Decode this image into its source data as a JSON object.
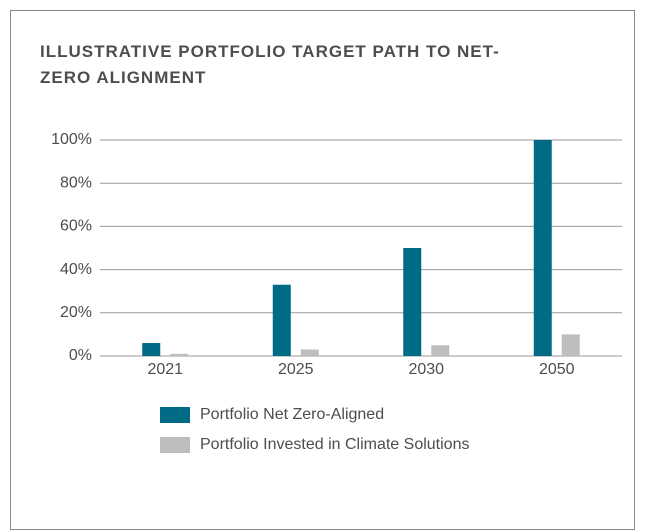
{
  "chart_data": {
    "type": "bar",
    "title": "ILLUSTRATIVE PORTFOLIO TARGET PATH TO NET-ZERO ALIGNMENT",
    "categories": [
      "2021",
      "2025",
      "2030",
      "2050"
    ],
    "series": [
      {
        "name": "Portfolio Net Zero-Aligned",
        "color": "#006b85",
        "values": [
          6,
          33,
          50,
          100
        ]
      },
      {
        "name": "Portfolio Invested in Climate Solutions",
        "color": "#bcbec0",
        "values": [
          1,
          3,
          5,
          10
        ]
      }
    ],
    "ylim": [
      0,
      100
    ],
    "yticks": [
      {
        "value": 0,
        "label": "0%"
      },
      {
        "value": 20,
        "label": "20%"
      },
      {
        "value": 40,
        "label": "40%"
      },
      {
        "value": 60,
        "label": "60%"
      },
      {
        "value": 80,
        "label": "80%"
      },
      {
        "value": 100,
        "label": "100%"
      }
    ],
    "grid": true
  }
}
